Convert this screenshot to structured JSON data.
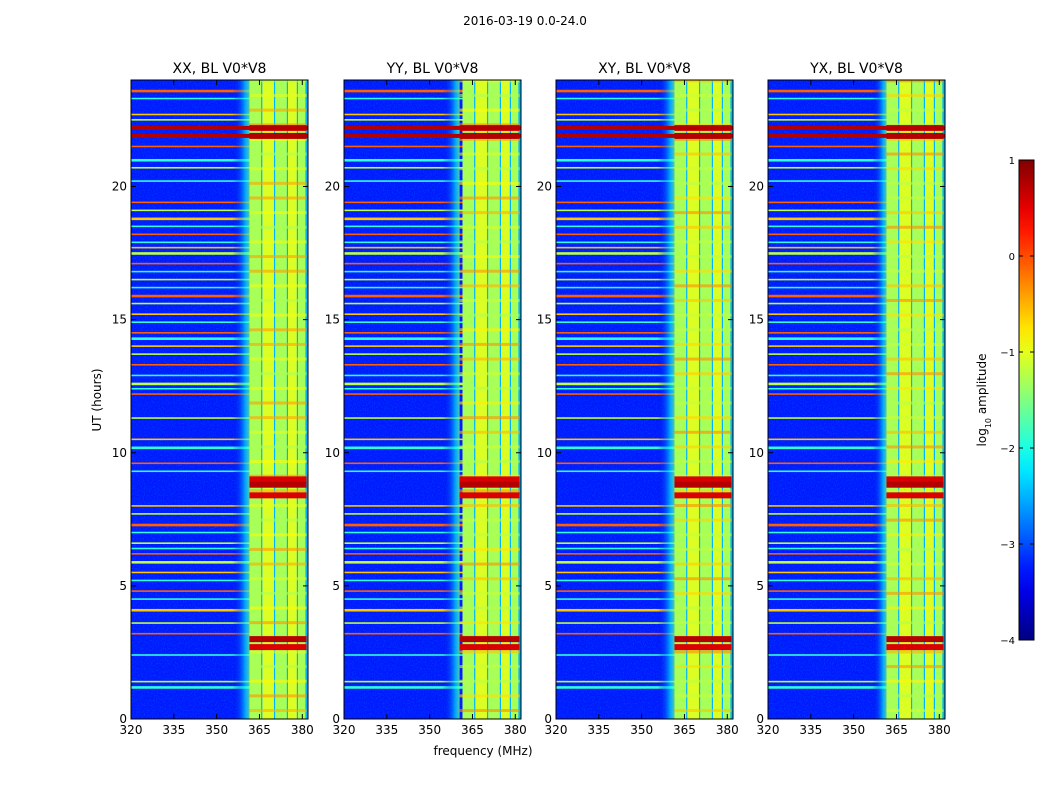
{
  "chart_data": {
    "type": "heatmap",
    "suptitle": "2016-03-19 0.0-24.0",
    "ylabel": "UT (hours)",
    "xlabel": "frequency (MHz)",
    "xlim": [
      320,
      382
    ],
    "ylim": [
      0,
      24
    ],
    "xticks": [
      320,
      335,
      350,
      365,
      380
    ],
    "xtick_labels": [
      "320",
      "335",
      "350",
      "365",
      "380"
    ],
    "yticks": [
      0,
      5,
      10,
      15,
      20
    ],
    "ytick_labels": [
      "0",
      "5",
      "10",
      "15",
      "20"
    ],
    "panels": [
      {
        "title": "XX, BL V0*V8",
        "band_start": 361.5,
        "edge_start": 355.5
      },
      {
        "title": "YY, BL V0*V8",
        "band_start": 360.5,
        "edge_start": 354.5
      },
      {
        "title": "XY, BL V0*V8",
        "band_start": 361.5,
        "edge_start": 355.5
      },
      {
        "title": "YX, BL V0*V8",
        "band_start": 361.5,
        "edge_start": 356.5
      }
    ],
    "band_end": 381.5,
    "band_subchannels": [
      [
        361.5,
        366
      ],
      [
        366,
        370.5
      ],
      [
        370.5,
        375
      ],
      [
        375,
        378.5
      ],
      [
        378.5,
        381.5
      ]
    ],
    "colorbar": {
      "label": "log10 amplitude",
      "label_base": "log",
      "label_sub": "10",
      "label_rest": " amplitude",
      "range": [
        -4,
        1
      ],
      "ticks": [
        1,
        0,
        -1,
        -2,
        -3,
        -4
      ],
      "tick_labels": [
        "1",
        "0",
        "−1",
        "−2",
        "−3",
        "−4"
      ],
      "colormap": "jet"
    },
    "rfi_hot_rows_ut": [
      22.2,
      21.9,
      9.0,
      8.8,
      8.4,
      3.0,
      2.7
    ],
    "rfi_lines_ut": [
      23.6,
      23.3,
      22.7,
      22.5,
      21.5,
      21.0,
      20.7,
      20.2,
      19.4,
      19.1,
      18.8,
      18.5,
      18.2,
      17.9,
      17.7,
      17.5,
      17.1,
      16.8,
      16.5,
      16.2,
      15.9,
      15.6,
      15.2,
      14.9,
      14.5,
      14.3,
      14.0,
      13.7,
      13.3,
      12.9,
      12.6,
      12.4,
      12.2,
      11.3,
      10.5,
      10.2,
      9.6,
      9.3,
      8.0,
      7.7,
      7.3,
      7.0,
      6.6,
      6.4,
      6.2,
      5.9,
      5.5,
      5.2,
      4.8,
      4.5,
      4.1,
      3.6,
      3.2,
      2.4,
      1.4,
      1.2
    ]
  }
}
